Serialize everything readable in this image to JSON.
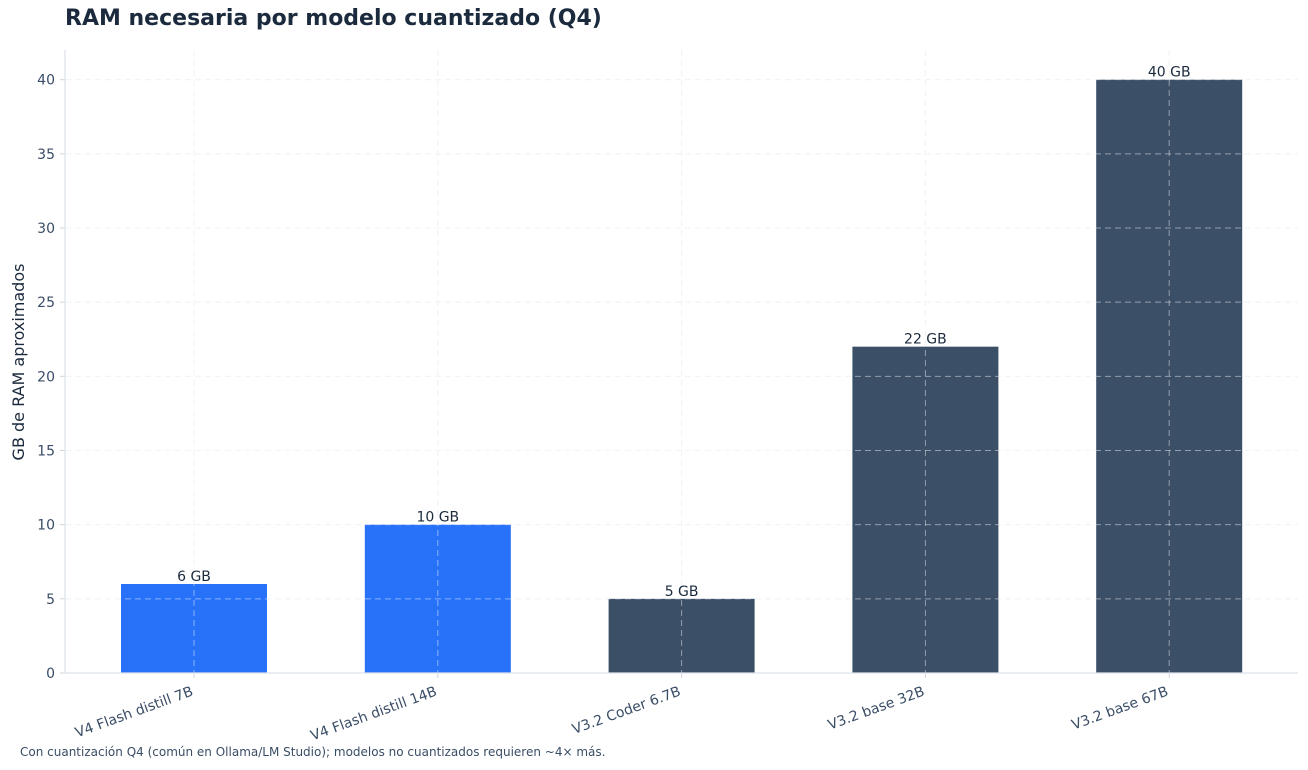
{
  "chart_data": {
    "type": "bar",
    "title": "RAM necesaria por modelo cuantizado (Q4)",
    "xlabel": "",
    "ylabel": "GB de RAM aproximados",
    "categories": [
      "V4 Flash distill 7B",
      "V4 Flash distill 14B",
      "V3.2 Coder 6.7B",
      "V3.2 base 32B",
      "V3.2 base 67B"
    ],
    "values": [
      6,
      10,
      5,
      22,
      40
    ],
    "data_labels": [
      "6 GB",
      "10 GB",
      "5 GB",
      "22 GB",
      "40 GB"
    ],
    "bar_colors": [
      "#2872fa",
      "#2872fa",
      "#3b4f67",
      "#3b4f67",
      "#3b4f67"
    ],
    "ylim": [
      0,
      42
    ],
    "yticks": [
      0,
      5,
      10,
      15,
      20,
      25,
      30,
      35,
      40
    ],
    "grid": true,
    "footnote": "Con cuantización Q4 (común en Ollama/LM Studio); modelos no cuantizados requieren ~4× más."
  }
}
